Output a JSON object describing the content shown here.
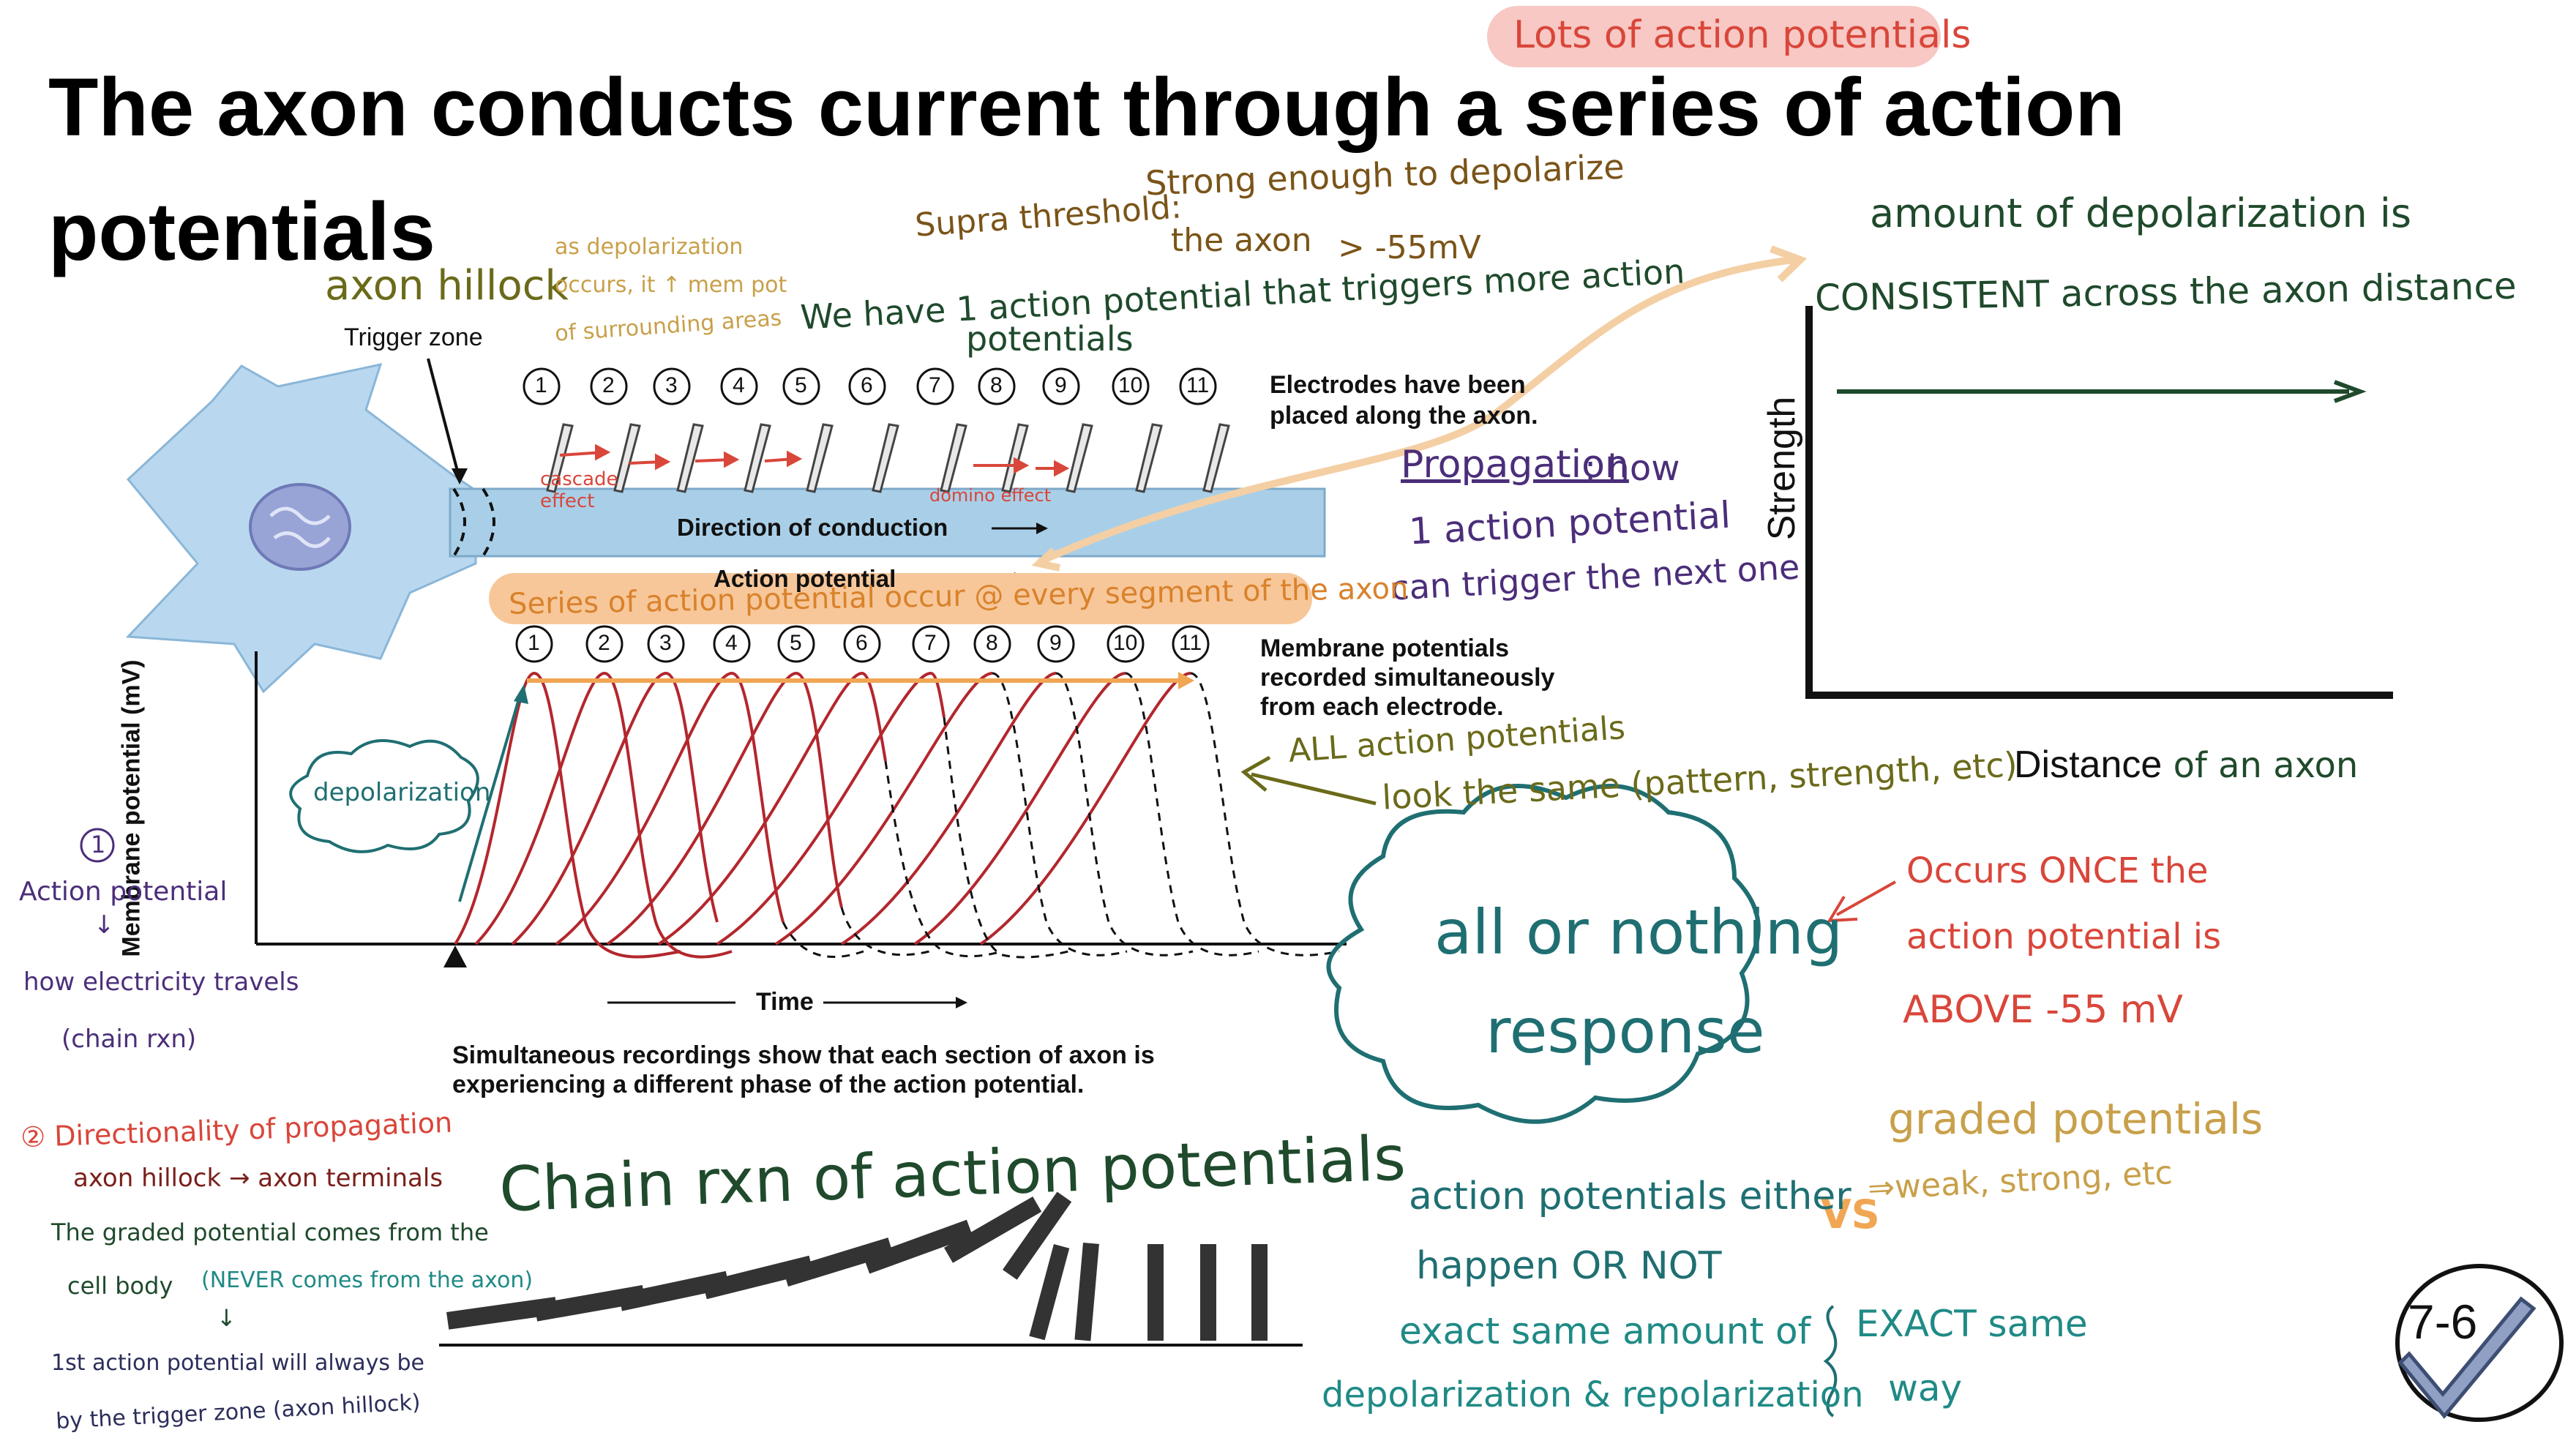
{
  "slide": {
    "title": "The axon conducts current through a series of action potentials",
    "badge": "7-6"
  },
  "colors": {
    "dark_green": "#1f4a2c",
    "olive": "#6b6a1a",
    "brown": "#7a5418",
    "red": "#d9463a",
    "purple": "#4b2e7a",
    "teal": "#1f6f72",
    "navy": "#2b2e5a",
    "orange": "#f0b070",
    "pink_highlight": "#f7c8c4",
    "axon_blue": "#a9cfe8",
    "trace_red": "#b3272d",
    "gold": "#c8a04a"
  },
  "figure": {
    "trigger_zone": "Trigger zone",
    "electrodes_note": "Electrodes have been placed along the axon.",
    "direction": "Direction of conduction",
    "action_potential_label": "Action potential",
    "membrane_note": "Membrane potentials recorded simultaneously from each electrode.",
    "y_axis": "Membrane potential (mV)",
    "x_axis": "Time",
    "caption": "Simultaneous recordings show that each section of axon is experiencing a different phase of the action potential.",
    "electrode_numbers": [
      "1",
      "2",
      "3",
      "4",
      "5",
      "6",
      "7",
      "8",
      "9",
      "10",
      "11"
    ]
  },
  "notes": {
    "lots_of_aps": "Lots of action potentials",
    "supra_threshold": "Supra threshold:",
    "supra_desc_1": "Strong enough to depolarize",
    "supra_desc_2": "the axon",
    "supra_value": "> -55mV",
    "axon_hillock": "axon hillock",
    "as_depol_1": "as depolarization",
    "as_depol_2": "occurs, it ↑ mem pot",
    "as_depol_3": "of surrounding areas",
    "we_have_1": "We have 1 action potential that triggers more action",
    "we_have_2": "potentials",
    "cascade": "cascade effect",
    "domino": "domino effect",
    "propagation_word": "Propagation",
    "propagation_rest_1": ": how",
    "propagation_rest_2": "1 action potential",
    "propagation_rest_3": "can trigger the next one",
    "series_highlight": "Series of action potential occur @ every segment of the axon",
    "depolarization": "depolarization",
    "all_ap_1": "ALL action potentials",
    "all_ap_2": "look the same (pattern, strength, etc)",
    "point1_num": "1",
    "point1_title": "Action potential",
    "point1_arrow": "↓",
    "point1_desc_1": "how electricity travels",
    "point1_desc_2": "(chain rxn)",
    "point2_title": "② Directionality of propagation",
    "point2_line": "axon hillock → axon terminals",
    "graded_src_1": "The graded potential comes from the",
    "graded_src_2a": "cell body ",
    "graded_src_2b": "(NEVER comes from the axon)",
    "graded_src_arrow": "↓",
    "first_ap_1": "1st action potential will always be",
    "first_ap_2": "by the trigger zone (axon hillock)",
    "chain_rxn": "Chain rxn of action potentials",
    "all_or_nothing_1": "all or nothing",
    "all_or_nothing_2": "response",
    "occurs_once_1": "Occurs ONCE the",
    "occurs_once_2": "action potential is",
    "occurs_once_3": "ABOVE -55 mV",
    "graded_1": "graded potentials",
    "graded_2": "⇒weak, strong, etc",
    "vs": "VS",
    "ap_either_1": "action potentials either",
    "ap_either_2": "happen OR NOT",
    "exact_1": "exact same amount of",
    "exact_2": "depolarization & repolarization",
    "exact_same_1": "EXACT same",
    "exact_same_2": "way"
  },
  "strength_graph": {
    "heading_1": "amount of depolarization is",
    "heading_2": "CONSISTENT across the axon distance",
    "y_label": "Strength",
    "x_label_a": "Distance",
    "x_label_b": " of an axon"
  }
}
